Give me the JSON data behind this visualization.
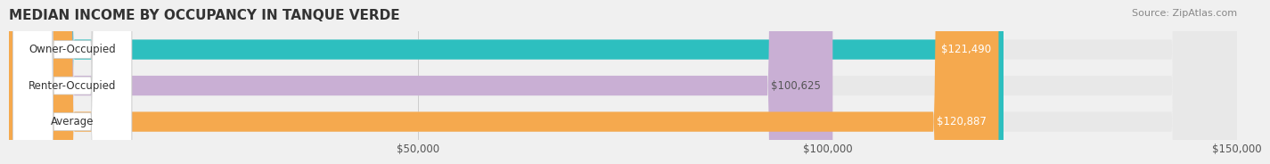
{
  "title": "MEDIAN INCOME BY OCCUPANCY IN TANQUE VERDE",
  "source": "Source: ZipAtlas.com",
  "categories": [
    "Owner-Occupied",
    "Renter-Occupied",
    "Average"
  ],
  "values": [
    121490,
    100625,
    120887
  ],
  "bar_colors": [
    "#2dbfbf",
    "#c9afd4",
    "#f5a94e"
  ],
  "label_colors": [
    "#ffffff",
    "#555555",
    "#ffffff"
  ],
  "value_labels": [
    "$121,490",
    "$100,625",
    "$120,887"
  ],
  "xlim": [
    0,
    150000
  ],
  "xticks": [
    0,
    50000,
    100000,
    150000
  ],
  "xtick_labels": [
    "",
    "$50,000",
    "$100,000",
    "$150,000"
  ],
  "bar_height": 0.55,
  "background_color": "#f0f0f0",
  "bar_bg_color": "#e8e8e8",
  "title_fontsize": 11,
  "source_fontsize": 8,
  "label_fontsize": 8.5,
  "value_fontsize": 8.5
}
